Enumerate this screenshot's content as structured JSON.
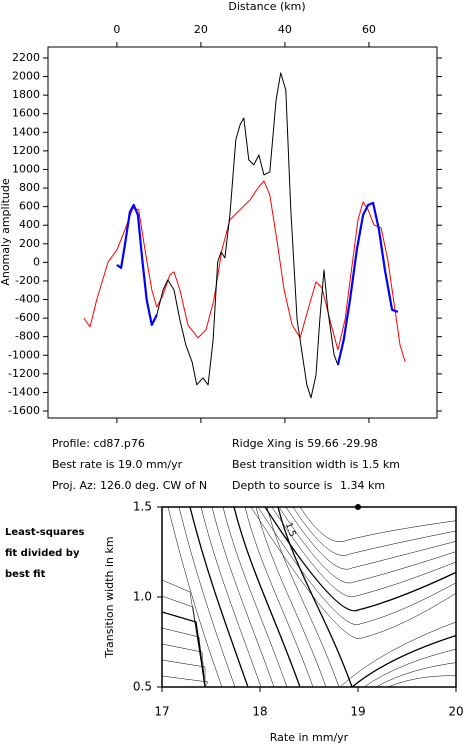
{
  "chart_data": [
    {
      "type": "line",
      "x_label": "Distance (km)",
      "y_label": "Anomaly amplitude",
      "xlim": [
        -16.4,
        76.2
      ],
      "ylim": [
        -1675,
        2318
      ],
      "xticks": [
        0,
        20,
        40,
        60
      ],
      "yticks": [
        -1600,
        -1400,
        -1200,
        -1000,
        -800,
        -600,
        -400,
        -200,
        0,
        200,
        400,
        600,
        800,
        1000,
        1200,
        1400,
        1600,
        1800,
        2000,
        2200
      ],
      "series": [
        {
          "color": "#ff0000",
          "width": 1,
          "x": [
            -7.9,
            -6.4,
            -4.8,
            -2.1,
            0,
            1.9,
            3.8,
            5.2,
            6.7,
            8.3,
            9.5,
            11,
            12.6,
            13.6,
            15,
            16.9,
            19.3,
            21.2,
            23.1,
            25,
            26.9,
            29.3,
            31.7,
            33.6,
            35,
            36.4,
            38.1,
            39.8,
            41.7,
            43.6,
            45.5,
            47.4,
            48.8,
            50.7,
            52.6,
            54.3,
            56,
            57.4,
            58.6,
            59.8,
            61.2,
            62.9,
            64.5,
            66.2,
            67.4,
            68.6
          ],
          "values": [
            -598,
            -694,
            -404,
            5,
            134,
            350,
            586,
            565,
            134,
            -296,
            -480,
            -350,
            -135,
            -103,
            -296,
            -673,
            -813,
            -727,
            -404,
            134,
            457,
            565,
            672,
            801,
            877,
            726,
            242,
            -296,
            -673,
            -813,
            -511,
            -210,
            -275,
            -619,
            -942,
            -619,
            -27,
            457,
            651,
            565,
            403,
            371,
            27,
            -511,
            -888,
            -1071
          ]
        },
        {
          "color": "#000000",
          "width": 1,
          "x": [
            0,
            1,
            1.9,
            3.1,
            4,
            5,
            6,
            7.1,
            8.3,
            9.5,
            11,
            12.1,
            13.6,
            15,
            16.4,
            17.9,
            19,
            20.5,
            21.7,
            22.9,
            24,
            24.8,
            25.7,
            26.9,
            28.3,
            29.3,
            30.2,
            31.4,
            32.6,
            33.8,
            35,
            36.4,
            37.9,
            39,
            40.2,
            41.4,
            42.9,
            43.8,
            45.2,
            46.2,
            47.4,
            48.3,
            49.3,
            50.2,
            51.7,
            52.6,
            54,
            55.5,
            57.1,
            58.6,
            59.8,
            61,
            62.4,
            63.8,
            65.5,
            66.9
          ],
          "values": [
            -27,
            -60,
            188,
            543,
            618,
            511,
            48,
            -404,
            -673,
            -565,
            -296,
            -189,
            -296,
            -619,
            -888,
            -1071,
            -1318,
            -1243,
            -1318,
            -834,
            5,
            113,
            48,
            511,
            1318,
            1479,
            1554,
            1103,
            1049,
            1156,
            941,
            974,
            1748,
            2039,
            1856,
            565,
            -619,
            -888,
            -1318,
            -1458,
            -1211,
            -619,
            -81,
            -511,
            -996,
            -1103,
            -834,
            -404,
            134,
            511,
            618,
            640,
            350,
            -81,
            -511,
            -533
          ]
        },
        {
          "color": "#0000ff",
          "width": 2.2,
          "x": [
            0,
            1,
            1.9,
            3.1,
            4,
            5,
            6,
            7.1,
            8.3,
            9.5,
            null,
            52.6,
            54,
            55.5,
            57.1,
            58.6,
            59.8,
            61,
            62.4,
            63.8,
            65.5,
            66.9
          ],
          "values": [
            -27,
            -60,
            188,
            543,
            618,
            511,
            48,
            -404,
            -673,
            -565,
            null,
            -1103,
            -834,
            -404,
            134,
            511,
            618,
            640,
            350,
            -81,
            -511,
            -533
          ]
        }
      ],
      "annotations": [
        "Profile: cd87.p76",
        "Best rate is 19.0 mm/yr",
        "Proj. Az: 126.0 deg. CW of N",
        "Ridge Xing is 59.66 -29.98",
        "Best transition width is 1.5 km",
        "Depth to source is",
        "1.34 km"
      ]
    },
    {
      "type": "contour",
      "x_label": "Rate in mm/yr",
      "y_label": "Transition width in km",
      "xlim": [
        17,
        20
      ],
      "ylim": [
        0.5,
        1.5
      ],
      "xticks": [
        17,
        18,
        19,
        20
      ],
      "yticks": [
        0.5,
        {
          "value": 1,
          "label": "1.0"
        },
        1.5
      ],
      "note_lines": [
        "Least-squares",
        "fit divided by",
        "best fit"
      ],
      "contour_label": "1.5",
      "best_point": {
        "x": 19,
        "y": 1.5
      }
    }
  ]
}
